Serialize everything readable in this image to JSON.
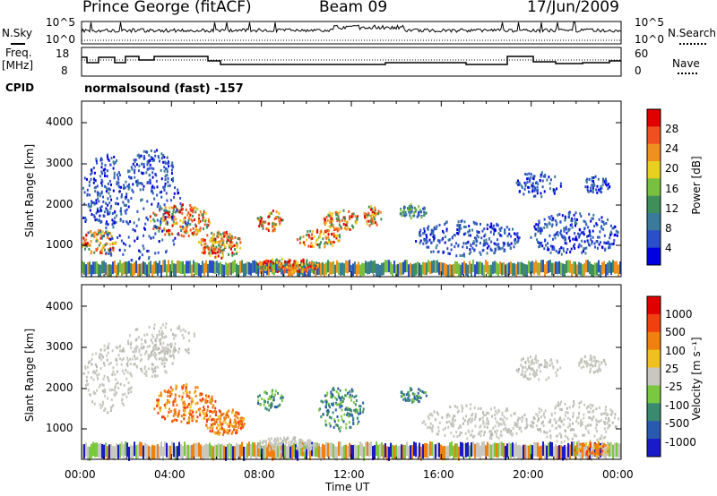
{
  "header": {
    "station": "Prince George (fitACF)",
    "beam": "Beam 09",
    "date": "17/Jun/2009"
  },
  "noise_panel": {
    "left_label": "N.Sky",
    "right_label": "N.Search",
    "left_ticks": [
      "10^5",
      "10^0"
    ],
    "right_ticks": [
      "10^5",
      "10^0"
    ]
  },
  "freq_panel": {
    "left_label_top": "Freq.",
    "left_label_unit": "[MHz]",
    "right_label": "Nave",
    "left_ticks": [
      "18",
      "8"
    ],
    "right_ticks": [
      "60",
      "0"
    ]
  },
  "cpid": {
    "label": "CPID",
    "value": "normalsound (fast) -157"
  },
  "power_panel": {
    "ylabel": "Slant Range [km]",
    "yticks": [
      "4000",
      "3000",
      "2000",
      "1000"
    ],
    "colorbar_label": "Power [dB]",
    "colorbar_ticks": [
      "28",
      "24",
      "20",
      "16",
      "12",
      "8",
      "4"
    ],
    "colors": [
      "#0000e0",
      "#2a4fc8",
      "#3a7a9a",
      "#3f8f5a",
      "#7ac040",
      "#e8d020",
      "#f09020",
      "#f05020",
      "#e00000"
    ]
  },
  "velocity_panel": {
    "ylabel": "Slant Range [km]",
    "yticks": [
      "4000",
      "3000",
      "2000",
      "1000"
    ],
    "colorbar_label": "Velocity [m s⁻¹]",
    "colorbar_ticks": [
      "1000",
      "500",
      "100",
      "25",
      "-25",
      "-100",
      "-500",
      "-1000"
    ],
    "colors": [
      "#1a1ac8",
      "#2a5ab0",
      "#3a8a70",
      "#7ac840",
      "#c8c8c0",
      "#f0c020",
      "#f08010",
      "#f04010",
      "#e00000"
    ]
  },
  "xaxis": {
    "label": "Time UT",
    "ticks": [
      "00:00",
      "04:00",
      "08:00",
      "12:00",
      "16:00",
      "20:00",
      "00:00"
    ]
  }
}
